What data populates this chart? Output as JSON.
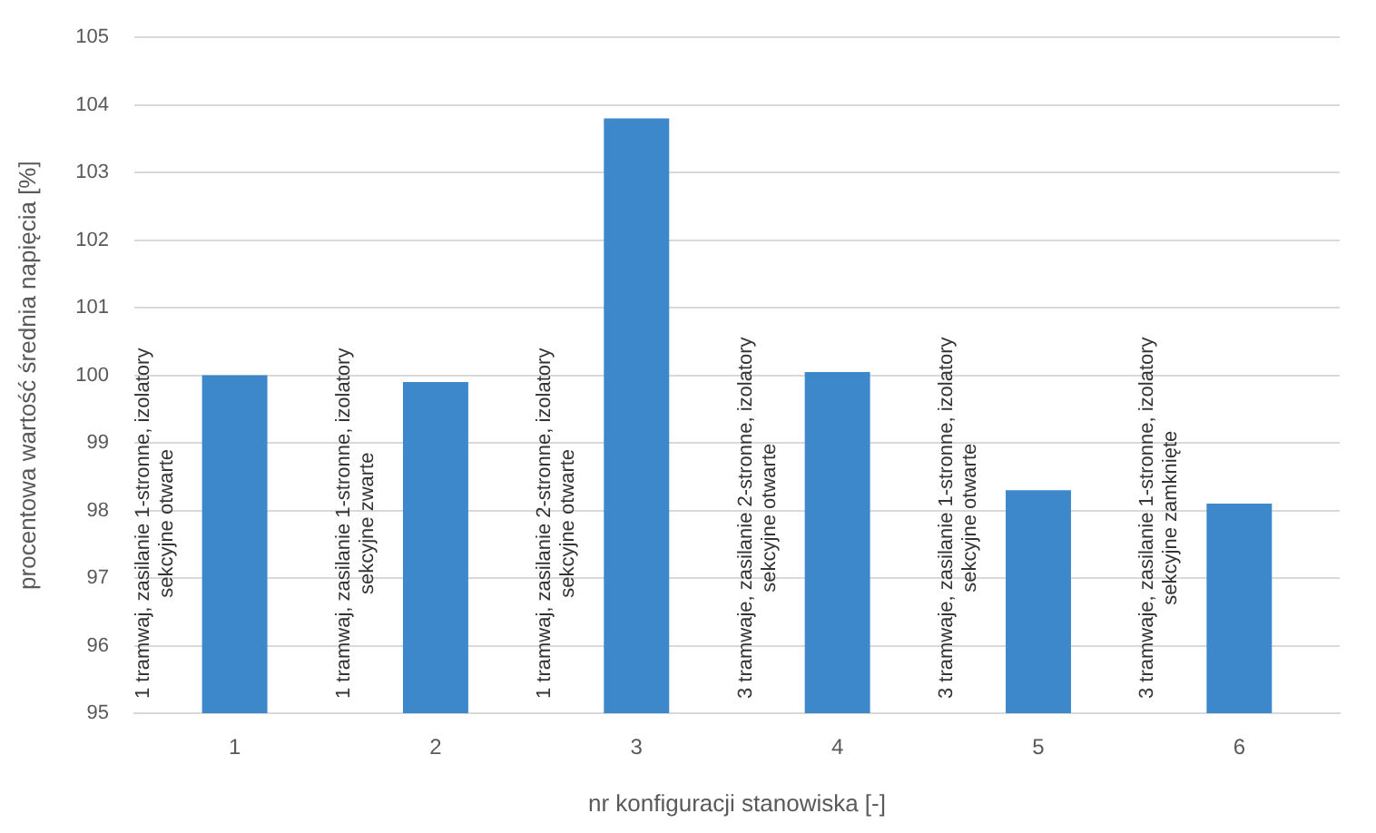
{
  "chart_data": {
    "type": "bar",
    "xlabel": "nr konfiguracji stanowiska [-]",
    "ylabel": "procentowa wartość średnia napięcia [%]",
    "categories": [
      "1",
      "2",
      "3",
      "4",
      "5",
      "6"
    ],
    "values": [
      100,
      99.9,
      103.8,
      100.05,
      98.3,
      98.1
    ],
    "color": "#3d87cb",
    "ylim": [
      95,
      105
    ],
    "yticks": [
      95,
      96,
      97,
      98,
      99,
      100,
      101,
      102,
      103,
      104,
      105
    ],
    "grid": "y",
    "annotations": [
      "1 tramwaj, zasilanie 1-stronne, izolatory sekcyjne otwarte",
      "1 tramwaj, zasilanie 1-stronne, izolatory sekcyjne zwarte",
      "1 tramwaj, zasilanie 2-stronne, izolatory sekcyjne otwarte",
      "3 tramwaje, zasilanie 2-stronne, izolatory sekcyjne otwarte",
      "3 tramwaje, zasilanie 1-stronne, izolatory sekcyjne otwarte",
      "3 tramwaje, zasilanie 1-stronne, izolatory sekcyjne zamknięte"
    ]
  }
}
